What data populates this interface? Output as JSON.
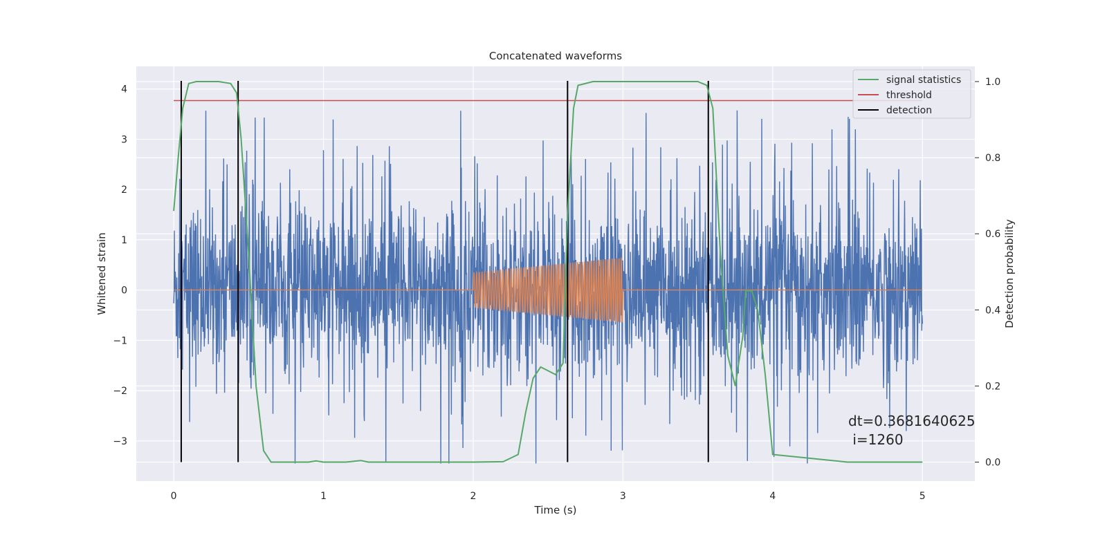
{
  "chart_data": {
    "type": "line",
    "title": "Concatenated waveforms",
    "xlabel": "Time (s)",
    "ylabel": "Whitened strain",
    "y2label": "Detection probability",
    "xlim": [
      -0.25,
      5.35
    ],
    "ylim": [
      -3.8,
      4.45
    ],
    "y2lim": [
      -0.05,
      1.04
    ],
    "xticks": [
      0,
      1,
      2,
      3,
      4,
      5
    ],
    "yticks": [
      -3,
      -2,
      -1,
      0,
      1,
      2,
      3,
      4
    ],
    "y2ticks": [
      0.0,
      0.2,
      0.4,
      0.6,
      0.8,
      1.0
    ],
    "xtick_labels": [
      "0",
      "1",
      "2",
      "3",
      "4",
      "5"
    ],
    "ytick_labels": [
      "−3",
      "−2",
      "−1",
      "0",
      "1",
      "2",
      "3",
      "4"
    ],
    "y2tick_labels": [
      "0.0",
      "0.2",
      "0.4",
      "0.6",
      "0.8",
      "1.0"
    ],
    "grid": true,
    "legend_position": "top-right",
    "colors": {
      "strain": "#4c72b0",
      "injected": "#dd8452",
      "signal_statistics": "#55a868",
      "threshold": "#c44e52",
      "detection": "#000000",
      "background": "#eaeaf2"
    },
    "series": [
      {
        "name": "",
        "axis": "left",
        "description_values": "whitened strain noise, approx. range −3.5 to 4.3 across 0–5 s",
        "x_range": [
          0,
          5
        ]
      },
      {
        "name": "",
        "axis": "left",
        "x_range": [
          0,
          5
        ],
        "chirp_window": [
          2.0,
          3.0
        ],
        "chirp_amplitude_start": 0.35,
        "chirp_amplitude_end": 0.65
      },
      {
        "name": "signal statistics",
        "axis": "right",
        "x": [
          0.0,
          0.03,
          0.06,
          0.1,
          0.15,
          0.2,
          0.3,
          0.38,
          0.42,
          0.45,
          0.5,
          0.55,
          0.6,
          0.65,
          0.9,
          0.95,
          1.0,
          1.15,
          1.25,
          1.3,
          1.5,
          2.0,
          2.2,
          2.3,
          2.35,
          2.4,
          2.45,
          2.5,
          2.55,
          2.6,
          2.63,
          2.67,
          2.7,
          2.8,
          3.0,
          3.2,
          3.4,
          3.5,
          3.56,
          3.6,
          3.65,
          3.7,
          3.75,
          3.8,
          3.82,
          3.86,
          3.9,
          3.95,
          4.0,
          4.5,
          5.0
        ],
        "values": [
          0.66,
          0.8,
          0.93,
          0.995,
          1.0,
          1.0,
          1.0,
          0.995,
          0.97,
          0.85,
          0.55,
          0.2,
          0.03,
          0.0,
          0.0,
          0.003,
          0.0,
          0.0,
          0.004,
          0.0,
          0.0,
          0.0,
          0.001,
          0.02,
          0.13,
          0.22,
          0.25,
          0.24,
          0.23,
          0.26,
          0.65,
          0.93,
          0.99,
          1.0,
          1.0,
          1.0,
          1.0,
          1.0,
          0.99,
          0.93,
          0.55,
          0.28,
          0.2,
          0.33,
          0.45,
          0.45,
          0.4,
          0.23,
          0.02,
          0.0,
          0.0
        ]
      },
      {
        "name": "threshold",
        "axis": "right",
        "x": [
          0,
          5
        ],
        "values": [
          0.95,
          0.95
        ]
      },
      {
        "name": "detection",
        "axis": "right",
        "x_positions": [
          0.05,
          0.43,
          2.63,
          3.57
        ]
      }
    ],
    "annotation": {
      "line1": "dt=0.3681640625",
      "line2": " i=1260"
    }
  }
}
